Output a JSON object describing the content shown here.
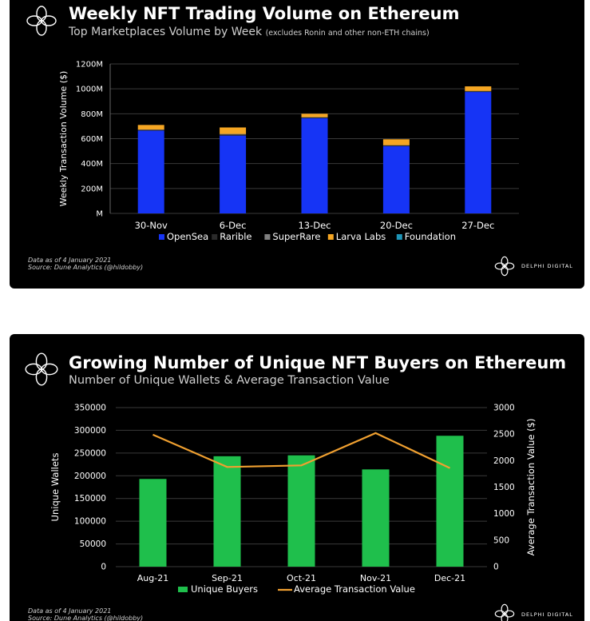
{
  "colors": {
    "background": "#000000",
    "opensea": "#1634f5",
    "rarible": "#2a2a2a",
    "superrare": "#7f7f7f",
    "larva_labs": "#f5a623",
    "foundation": "#1e95b8",
    "unique_buyers": "#1fbf4c",
    "avg_tx": "#f0a030",
    "text": "#ffffff",
    "grid": "#3a3a3a"
  },
  "panel1": {
    "logo_icon": "delphi-flower-icon",
    "title": "Weekly NFT Trading Volume on Ethereum",
    "subtitle": "Top Marketplaces Volume by Week",
    "subtitle_note": "(excludes Ronin and other non-ETH chains)",
    "footer_line1": "Data as of 4 January 2021",
    "footer_line2": "Source: Dune Analytics (@hildobby)",
    "brand": "DELPHI DIGITAL"
  },
  "panel2": {
    "logo_icon": "delphi-flower-icon",
    "title": "Growing Number of Unique NFT Buyers on Ethereum",
    "subtitle": "Number of Unique Wallets & Average Transaction Value",
    "footer_line1": "Data as of 4 January 2021",
    "footer_line2": "Source: Dune Analytics (@hildobby)",
    "brand": "DELPHI DIGITAL"
  },
  "chart_data": [
    {
      "type": "bar",
      "stacked": true,
      "title": "Weekly NFT Trading Volume on Ethereum",
      "subtitle": "Top Marketplaces Volume by Week (excludes Ronin and other non-ETH chains)",
      "ylabel": "Weekly Transaction Volume ($)",
      "categories": [
        "30-Nov",
        "6-Dec",
        "13-Dec",
        "20-Dec",
        "27-Dec"
      ],
      "yticks": [
        "M",
        "200M",
        "400M",
        "600M",
        "800M",
        "1000M",
        "1200M"
      ],
      "ylim": [
        0,
        1200
      ],
      "grid": true,
      "legend_position": "bottom",
      "series": [
        {
          "name": "OpenSea",
          "values": [
            665,
            625,
            765,
            540,
            975
          ]
        },
        {
          "name": "Rarible",
          "values": [
            5,
            8,
            5,
            5,
            5
          ]
        },
        {
          "name": "SuperRare",
          "values": [
            3,
            5,
            3,
            3,
            3
          ]
        },
        {
          "name": "Larva Labs",
          "values": [
            37,
            52,
            27,
            47,
            37
          ]
        },
        {
          "name": "Foundation",
          "values": [
            0,
            0,
            0,
            0,
            0
          ]
        }
      ]
    },
    {
      "type": "bar",
      "combo_line": true,
      "title": "Growing Number of Unique NFT Buyers on Ethereum",
      "subtitle": "Number of Unique Wallets & Average Transaction Value",
      "ylabel": "Unique Wallets",
      "y2label": "Average Transaction Value ($)",
      "categories": [
        "Aug-21",
        "Sep-21",
        "Oct-21",
        "Nov-21",
        "Dec-21"
      ],
      "yticks": [
        "0",
        "50000",
        "100000",
        "150000",
        "200000",
        "250000",
        "300000",
        "350000"
      ],
      "y2ticks": [
        "0",
        "500",
        "1000",
        "1500",
        "2000",
        "2500",
        "3000"
      ],
      "ylim": [
        0,
        350000
      ],
      "y2lim": [
        0,
        3000
      ],
      "grid": true,
      "legend_position": "bottom",
      "series": [
        {
          "name": "Unique Buyers",
          "type": "bar",
          "axis": "left",
          "values": [
            193000,
            243000,
            245000,
            214000,
            288000
          ]
        },
        {
          "name": "Average Transaction Value",
          "type": "line",
          "axis": "right",
          "values": [
            2490,
            1880,
            1910,
            2520,
            1860
          ]
        }
      ]
    }
  ]
}
